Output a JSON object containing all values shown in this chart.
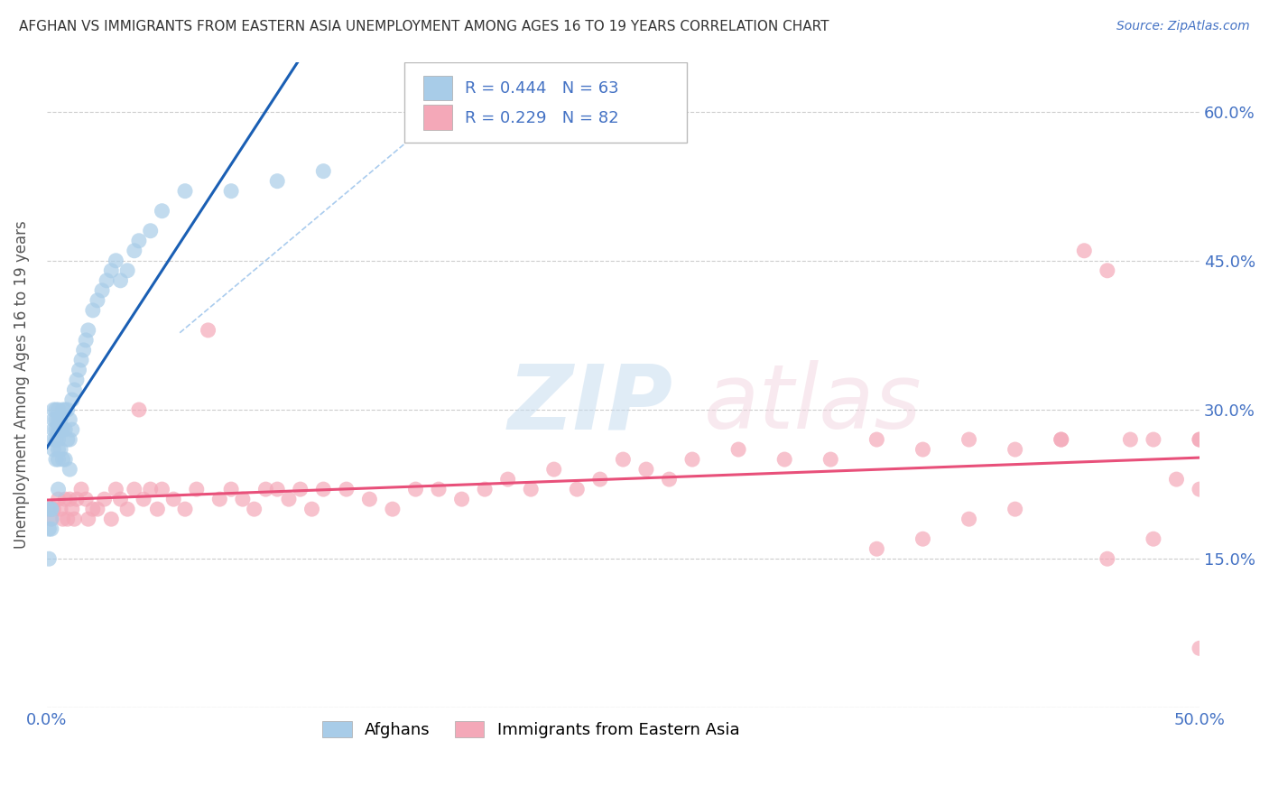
{
  "title": "AFGHAN VS IMMIGRANTS FROM EASTERN ASIA UNEMPLOYMENT AMONG AGES 16 TO 19 YEARS CORRELATION CHART",
  "source": "Source: ZipAtlas.com",
  "ylabel": "Unemployment Among Ages 16 to 19 years",
  "xlim": [
    0.0,
    0.5
  ],
  "ylim": [
    0.0,
    0.65
  ],
  "x_ticks": [
    0.0,
    0.1,
    0.2,
    0.3,
    0.4,
    0.5
  ],
  "y_ticks": [
    0.0,
    0.15,
    0.3,
    0.45,
    0.6
  ],
  "series1_color": "#a8cce8",
  "series2_color": "#f4a8b8",
  "trend1_color": "#1a5fb4",
  "trend2_color": "#e8507a",
  "label_color": "#4472c4",
  "grid_color": "#cccccc",
  "afghans_x": [
    0.001,
    0.001,
    0.001,
    0.002,
    0.002,
    0.002,
    0.002,
    0.003,
    0.003,
    0.003,
    0.003,
    0.003,
    0.004,
    0.004,
    0.004,
    0.004,
    0.004,
    0.005,
    0.005,
    0.005,
    0.005,
    0.005,
    0.005,
    0.005,
    0.006,
    0.006,
    0.006,
    0.007,
    0.007,
    0.007,
    0.008,
    0.008,
    0.008,
    0.009,
    0.009,
    0.01,
    0.01,
    0.01,
    0.011,
    0.011,
    0.012,
    0.013,
    0.014,
    0.015,
    0.016,
    0.017,
    0.018,
    0.02,
    0.022,
    0.024,
    0.026,
    0.028,
    0.03,
    0.032,
    0.035,
    0.038,
    0.04,
    0.045,
    0.05,
    0.06,
    0.08,
    0.1,
    0.12
  ],
  "afghans_y": [
    0.2,
    0.18,
    0.15,
    0.2,
    0.2,
    0.19,
    0.18,
    0.3,
    0.29,
    0.28,
    0.27,
    0.26,
    0.3,
    0.29,
    0.28,
    0.27,
    0.25,
    0.3,
    0.29,
    0.28,
    0.27,
    0.26,
    0.25,
    0.22,
    0.29,
    0.28,
    0.26,
    0.3,
    0.28,
    0.25,
    0.3,
    0.28,
    0.25,
    0.3,
    0.27,
    0.29,
    0.27,
    0.24,
    0.31,
    0.28,
    0.32,
    0.33,
    0.34,
    0.35,
    0.36,
    0.37,
    0.38,
    0.4,
    0.41,
    0.42,
    0.43,
    0.44,
    0.45,
    0.43,
    0.44,
    0.46,
    0.47,
    0.48,
    0.5,
    0.52,
    0.52,
    0.53,
    0.54
  ],
  "eastern_asia_x": [
    0.001,
    0.002,
    0.003,
    0.005,
    0.006,
    0.007,
    0.008,
    0.009,
    0.01,
    0.011,
    0.012,
    0.013,
    0.015,
    0.017,
    0.018,
    0.02,
    0.022,
    0.025,
    0.028,
    0.03,
    0.032,
    0.035,
    0.038,
    0.04,
    0.042,
    0.045,
    0.048,
    0.05,
    0.055,
    0.06,
    0.065,
    0.07,
    0.075,
    0.08,
    0.085,
    0.09,
    0.095,
    0.1,
    0.105,
    0.11,
    0.115,
    0.12,
    0.13,
    0.14,
    0.15,
    0.16,
    0.17,
    0.18,
    0.19,
    0.2,
    0.21,
    0.22,
    0.23,
    0.24,
    0.25,
    0.26,
    0.27,
    0.28,
    0.3,
    0.32,
    0.34,
    0.36,
    0.38,
    0.4,
    0.42,
    0.44,
    0.45,
    0.46,
    0.47,
    0.48,
    0.49,
    0.5,
    0.5,
    0.48,
    0.46,
    0.44,
    0.42,
    0.4,
    0.38,
    0.36,
    0.5,
    0.5
  ],
  "eastern_asia_y": [
    0.2,
    0.19,
    0.2,
    0.21,
    0.2,
    0.19,
    0.21,
    0.19,
    0.21,
    0.2,
    0.19,
    0.21,
    0.22,
    0.21,
    0.19,
    0.2,
    0.2,
    0.21,
    0.19,
    0.22,
    0.21,
    0.2,
    0.22,
    0.3,
    0.21,
    0.22,
    0.2,
    0.22,
    0.21,
    0.2,
    0.22,
    0.38,
    0.21,
    0.22,
    0.21,
    0.2,
    0.22,
    0.22,
    0.21,
    0.22,
    0.2,
    0.22,
    0.22,
    0.21,
    0.2,
    0.22,
    0.22,
    0.21,
    0.22,
    0.23,
    0.22,
    0.24,
    0.22,
    0.23,
    0.25,
    0.24,
    0.23,
    0.25,
    0.26,
    0.25,
    0.25,
    0.27,
    0.26,
    0.27,
    0.26,
    0.27,
    0.46,
    0.44,
    0.27,
    0.27,
    0.23,
    0.27,
    0.22,
    0.17,
    0.15,
    0.27,
    0.2,
    0.19,
    0.17,
    0.16,
    0.06,
    0.27
  ]
}
